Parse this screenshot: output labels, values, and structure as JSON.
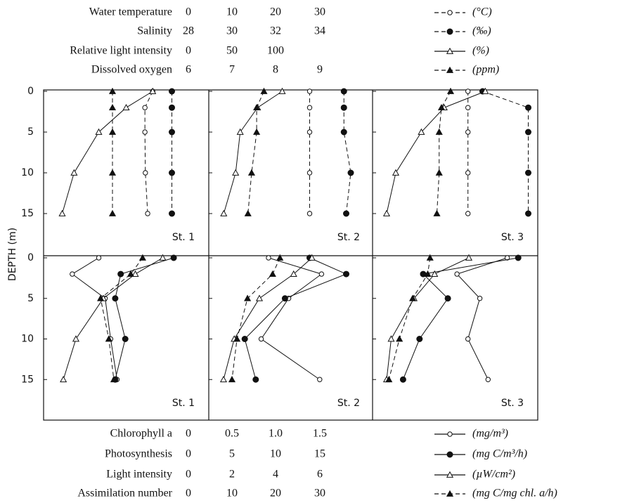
{
  "chart_data": {
    "type": "line",
    "ylabel": "DEPTH (m)",
    "ylim": [
      0,
      20
    ],
    "yticks": [
      0,
      5,
      10,
      15
    ],
    "depths": [
      0,
      2,
      5,
      10,
      15
    ],
    "top_scales": [
      {
        "name": "Water temperature",
        "xlim": [
          0,
          30
        ],
        "ticks": [
          0,
          10,
          20,
          30
        ],
        "unit": "(°C)",
        "marker": "open-circle",
        "dash": true
      },
      {
        "name": "Salinity",
        "xlim": [
          28,
          34
        ],
        "ticks": [
          28,
          30,
          32,
          34
        ],
        "unit": "(‰)",
        "marker": "filled-circle",
        "dash": true
      },
      {
        "name": "Relative light intensity",
        "xlim": [
          0,
          150
        ],
        "ticks": [
          0,
          50,
          100
        ],
        "unit": "(%)",
        "marker": "open-triangle",
        "dash": false
      },
      {
        "name": "Dissolved oxygen",
        "xlim": [
          6,
          9
        ],
        "ticks": [
          6,
          7,
          8,
          9
        ],
        "unit": "(ppm)",
        "marker": "filled-triangle",
        "dash": true
      }
    ],
    "bottom_scales": [
      {
        "name": "Chlorophyll a",
        "xlim": [
          0,
          1.5
        ],
        "ticks": [
          0,
          0.5,
          {
            "value": 1,
            "label": "1.0"
          },
          1.5
        ],
        "unit": "(mg/m³)",
        "marker": "open-circle",
        "dash": false
      },
      {
        "name": "Photosynthesis",
        "xlim": [
          0,
          15
        ],
        "ticks": [
          0,
          5,
          10,
          15
        ],
        "unit": "(mg C/m³/h)",
        "marker": "filled-circle",
        "dash": false
      },
      {
        "name": "Light intensity",
        "xlim": [
          0,
          6
        ],
        "ticks": [
          0,
          2,
          4,
          6
        ],
        "unit": "(µW/cm²)",
        "marker": "open-triangle",
        "dash": false
      },
      {
        "name": "Assimilation number",
        "xlim": [
          0,
          30
        ],
        "ticks": [
          0,
          10,
          20,
          30
        ],
        "unit": "(mg C/mg chl. a/h)",
        "marker": "filled-triangle",
        "dash": true
      }
    ],
    "panels": [
      {
        "label": "St. 1",
        "row": "top",
        "series": [
          [
            20.8,
            19.1,
            19.1,
            19.2,
            19.7
          ],
          [
            33.0,
            33.0,
            33.0,
            33.0,
            33.0
          ],
          [
            104,
            75,
            45,
            18,
            5
          ],
          [
            7.2,
            7.2,
            7.2,
            7.2,
            7.2
          ]
        ]
      },
      {
        "label": "St. 2",
        "row": "top",
        "series": [
          [
            19,
            19,
            19,
            19,
            19
          ],
          [
            33.3,
            33.3,
            33.3,
            33.6,
            33.4
          ],
          [
            65,
            38,
            19,
            14,
            1
          ],
          [
            6.9,
            6.74,
            6.74,
            6.63,
            6.55
          ]
        ]
      },
      {
        "label": "St. 3",
        "row": "top",
        "series": [
          [
            17.8,
            17.8,
            17.8,
            17.8,
            17.8
          ],
          [
            32.2,
            34.2,
            34.2,
            34.2,
            34.2
          ],
          [
            108,
            63,
            38,
            10,
            0
          ],
          [
            7.4,
            7.2,
            7.15,
            7.15,
            7.1
          ]
        ]
      },
      {
        "label": "St. 1",
        "row": "bottom",
        "series": [
          [
            0.45,
            0.16,
            0.52,
            0.58,
            0.65
          ],
          [
            12.7,
            6.9,
            6.3,
            7.4,
            6.3
          ],
          [
            4.6,
            3.4,
            2.0,
            0.8,
            0.25
          ],
          [
            18.6,
            16,
            9.4,
            11.2,
            12.3
          ]
        ]
      },
      {
        "label": "St. 2",
        "row": "bottom",
        "series": [
          [
            0.5,
            1.08,
            0.72,
            0.42,
            1.06
          ],
          [
            9.5,
            13.5,
            6.8,
            2.4,
            3.6
          ],
          [
            3.9,
            3.1,
            1.6,
            0.5,
            0.03
          ],
          [
            12.5,
            10.9,
            5.4,
            3.1,
            2.0
          ]
        ]
      },
      {
        "label": "St. 3",
        "row": "bottom",
        "series": [
          [
            1.32,
            0.77,
            1.02,
            0.89,
            1.11
          ],
          [
            14.4,
            4.0,
            6.7,
            3.6,
            1.8
          ],
          [
            3.6,
            2.1,
            1.2,
            0.2,
            0
          ],
          [
            9.5,
            9.0,
            5.7,
            2.8,
            0.5
          ]
        ]
      }
    ]
  }
}
